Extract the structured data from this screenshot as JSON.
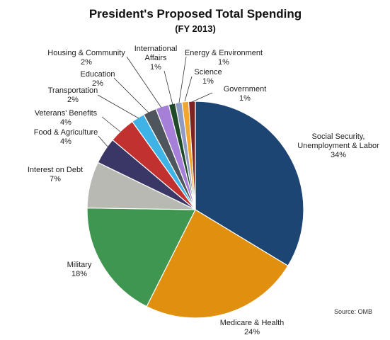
{
  "chart_data": {
    "type": "pie",
    "title": "President's Proposed Total Spending",
    "subtitle": "(FY 2013)",
    "source": "Source: OMB",
    "slices": [
      {
        "key": "social-security",
        "name_lines": [
          "Social Security,",
          "Unemployment & Labor"
        ],
        "value": 34,
        "value_label": "34%",
        "color": "#1c4574"
      },
      {
        "key": "medicare-health",
        "name_lines": [
          "Medicare & Health"
        ],
        "value": 24,
        "value_label": "24%",
        "color": "#e0900e"
      },
      {
        "key": "military",
        "name_lines": [
          "Military"
        ],
        "value": 18,
        "value_label": "18%",
        "color": "#3e9650"
      },
      {
        "key": "interest-on-debt",
        "name_lines": [
          "Interest on Debt"
        ],
        "value": 7,
        "value_label": "7%",
        "color": "#b9b9b3"
      },
      {
        "key": "food-agriculture",
        "name_lines": [
          "Food & Agriculture"
        ],
        "value": 4,
        "value_label": "4%",
        "color": "#3a3766"
      },
      {
        "key": "veterans-benefits",
        "name_lines": [
          "Veterans' Benefits"
        ],
        "value": 4,
        "value_label": "4%",
        "color": "#c0312f"
      },
      {
        "key": "transportation",
        "name_lines": [
          "Transportation"
        ],
        "value": 2,
        "value_label": "2%",
        "color": "#3fb3e6"
      },
      {
        "key": "education",
        "name_lines": [
          "Education"
        ],
        "value": 2,
        "value_label": "2%",
        "color": "#4e555d"
      },
      {
        "key": "housing-community",
        "name_lines": [
          "Housing & Community"
        ],
        "value": 2,
        "value_label": "2%",
        "color": "#a57fd8"
      },
      {
        "key": "international-affairs",
        "name_lines": [
          "International",
          "Affairs"
        ],
        "value": 1,
        "value_label": "1%",
        "color": "#1f4a2a"
      },
      {
        "key": "energy-environment",
        "name_lines": [
          "Energy & Environment"
        ],
        "value": 1,
        "value_label": "1%",
        "color": "#8f9bc2"
      },
      {
        "key": "science",
        "name_lines": [
          "Science"
        ],
        "value": 1,
        "value_label": "1%",
        "color": "#f1a630"
      },
      {
        "key": "government",
        "name_lines": [
          "Government"
        ],
        "value": 1,
        "value_label": "1%",
        "color": "#7d2421"
      }
    ]
  }
}
